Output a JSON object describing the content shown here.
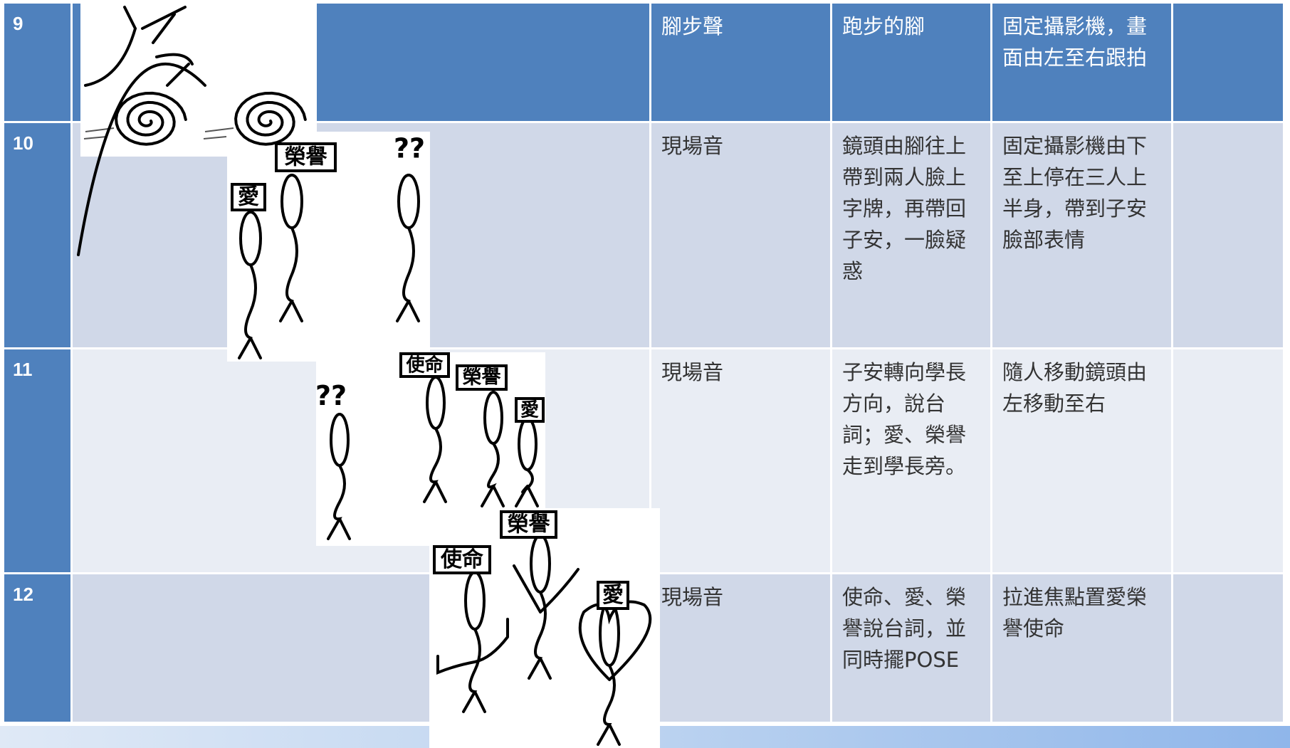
{
  "table": {
    "rows": [
      {
        "number": "9",
        "sound": "腳步聲",
        "action": "跑步的腳",
        "camera": "固定攝影機，畫面由左至右跟拍"
      },
      {
        "number": "10",
        "sound": "現場音",
        "action": "鏡頭由腳往上帶到兩人臉上字牌，再帶回子安，一臉疑惑",
        "camera": "固定攝影機由下至上停在三人上半身，帶到子安臉部表情"
      },
      {
        "number": "11",
        "sound": "現場音",
        "action": "子安轉向學長方向，說台詞；愛、榮譽走到學長旁。",
        "camera": "隨人移動鏡頭由左移動至右"
      },
      {
        "number": "12",
        "sound": "現場音",
        "action": "使命、愛、榮譽說台詞，並同時擺POSE",
        "camera": "拉進焦點置愛榮譽使命"
      }
    ]
  },
  "sketches": [
    {
      "labels": [
        "愛",
        "榮譽",
        "??"
      ]
    },
    {
      "labels": [
        "??",
        "使命",
        "榮譽",
        "愛"
      ]
    },
    {
      "labels": [
        "使命",
        "榮譽",
        "愛"
      ]
    }
  ]
}
